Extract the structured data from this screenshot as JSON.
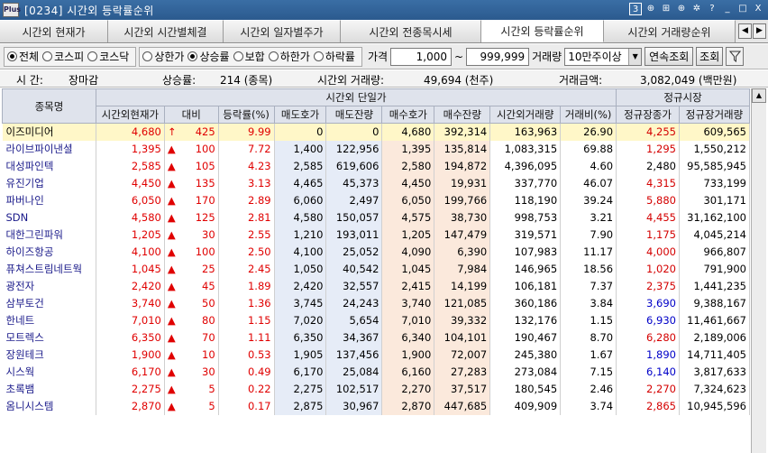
{
  "window": {
    "app_icon": "Plus",
    "title": "[0234] 시간외 등락률순위",
    "controls": [
      "3",
      "⊕",
      "⊞",
      "⊕",
      "✲",
      "?",
      "_",
      "□",
      "X"
    ]
  },
  "tabs": [
    {
      "label": "시간외 현재가",
      "active": false
    },
    {
      "label": "시간외 시간별체결",
      "active": false
    },
    {
      "label": "시간외 일자별주가",
      "active": false
    },
    {
      "label": "시간외 전종목시세",
      "active": false
    },
    {
      "label": "시간외 등락률순위",
      "active": true
    },
    {
      "label": "시간외 거래량순위",
      "active": false
    }
  ],
  "tab_nav": {
    "prev": "◀",
    "next": "▶"
  },
  "filters": {
    "market": [
      {
        "label": "전체",
        "checked": true
      },
      {
        "label": "코스피",
        "checked": false
      },
      {
        "label": "코스닥",
        "checked": false
      }
    ],
    "direction": [
      {
        "label": "상한가",
        "checked": false
      },
      {
        "label": "상승률",
        "checked": true
      },
      {
        "label": "보합",
        "checked": false
      },
      {
        "label": "하한가",
        "checked": false
      },
      {
        "label": "하락률",
        "checked": false
      }
    ],
    "price_label": "가격",
    "price_from": "1,000",
    "price_sep": "~",
    "price_to": "999,999",
    "volume_label": "거래량",
    "volume_select": "10만주이상",
    "continuous_button": "연속조회",
    "search_button": "조회",
    "filter_icon": "funnel-icon"
  },
  "summary": {
    "time_label": "시    간:",
    "time_value": "장마감",
    "rise_label": "상승률:",
    "rise_value": "214 (종목)",
    "volume_label": "시간외 거래량:",
    "volume_value": "49,694 (천주)",
    "amount_label": "거래금액:",
    "amount_value": "3,082,049 (백만원)"
  },
  "table": {
    "group_headers": {
      "name": "종목명",
      "afterhours": "시간외 단일가",
      "regular": "정규시장"
    },
    "columns": [
      "시간외현재가",
      "대비",
      "등락률(%)",
      "매도호가",
      "매도잔량",
      "매수호가",
      "매수잔량",
      "시간외거래량",
      "거래비(%)",
      "정규장종가",
      "정규장거래량"
    ],
    "rows": [
      {
        "name": "이즈미디어",
        "price": "4,680",
        "arrow": "↑",
        "diff": "425",
        "rate": "9.99",
        "ask": "0",
        "ask_qty": "0",
        "bid": "4,680",
        "bid_qty": "392,314",
        "vol": "163,963",
        "ratio": "26.90",
        "close": "4,255",
        "close_color": "red",
        "reg_vol": "609,565"
      },
      {
        "name": "라이브파이낸셜",
        "price": "1,395",
        "arrow": "▲",
        "diff": "100",
        "rate": "7.72",
        "ask": "1,400",
        "ask_qty": "122,956",
        "bid": "1,395",
        "bid_qty": "135,814",
        "vol": "1,083,315",
        "ratio": "69.88",
        "close": "1,295",
        "close_color": "red",
        "reg_vol": "1,550,212"
      },
      {
        "name": "대성파인텍",
        "price": "2,585",
        "arrow": "▲",
        "diff": "105",
        "rate": "4.23",
        "ask": "2,585",
        "ask_qty": "619,606",
        "bid": "2,580",
        "bid_qty": "194,872",
        "vol": "4,396,095",
        "ratio": "4.60",
        "close": "2,480",
        "close_color": "black",
        "reg_vol": "95,585,945"
      },
      {
        "name": "유진기업",
        "price": "4,450",
        "arrow": "▲",
        "diff": "135",
        "rate": "3.13",
        "ask": "4,465",
        "ask_qty": "45,373",
        "bid": "4,450",
        "bid_qty": "19,931",
        "vol": "337,770",
        "ratio": "46.07",
        "close": "4,315",
        "close_color": "red",
        "reg_vol": "733,199"
      },
      {
        "name": "파버나인",
        "price": "6,050",
        "arrow": "▲",
        "diff": "170",
        "rate": "2.89",
        "ask": "6,060",
        "ask_qty": "2,497",
        "bid": "6,050",
        "bid_qty": "199,766",
        "vol": "118,190",
        "ratio": "39.24",
        "close": "5,880",
        "close_color": "red",
        "reg_vol": "301,171"
      },
      {
        "name": "SDN",
        "price": "4,580",
        "arrow": "▲",
        "diff": "125",
        "rate": "2.81",
        "ask": "4,580",
        "ask_qty": "150,057",
        "bid": "4,575",
        "bid_qty": "38,730",
        "vol": "998,753",
        "ratio": "3.21",
        "close": "4,455",
        "close_color": "red",
        "reg_vol": "31,162,100"
      },
      {
        "name": "대한그린파워",
        "price": "1,205",
        "arrow": "▲",
        "diff": "30",
        "rate": "2.55",
        "ask": "1,210",
        "ask_qty": "193,011",
        "bid": "1,205",
        "bid_qty": "147,479",
        "vol": "319,571",
        "ratio": "7.90",
        "close": "1,175",
        "close_color": "red",
        "reg_vol": "4,045,214"
      },
      {
        "name": "하이즈항공",
        "price": "4,100",
        "arrow": "▲",
        "diff": "100",
        "rate": "2.50",
        "ask": "4,100",
        "ask_qty": "25,052",
        "bid": "4,090",
        "bid_qty": "6,390",
        "vol": "107,983",
        "ratio": "11.17",
        "close": "4,000",
        "close_color": "red",
        "reg_vol": "966,807"
      },
      {
        "name": "퓨쳐스트림네트웍",
        "price": "1,045",
        "arrow": "▲",
        "diff": "25",
        "rate": "2.45",
        "ask": "1,050",
        "ask_qty": "40,542",
        "bid": "1,045",
        "bid_qty": "7,984",
        "vol": "146,965",
        "ratio": "18.56",
        "close": "1,020",
        "close_color": "red",
        "reg_vol": "791,900"
      },
      {
        "name": "광전자",
        "price": "2,420",
        "arrow": "▲",
        "diff": "45",
        "rate": "1.89",
        "ask": "2,420",
        "ask_qty": "32,557",
        "bid": "2,415",
        "bid_qty": "14,199",
        "vol": "106,181",
        "ratio": "7.37",
        "close": "2,375",
        "close_color": "red",
        "reg_vol": "1,441,235"
      },
      {
        "name": "삼부토건",
        "price": "3,740",
        "arrow": "▲",
        "diff": "50",
        "rate": "1.36",
        "ask": "3,745",
        "ask_qty": "24,243",
        "bid": "3,740",
        "bid_qty": "121,085",
        "vol": "360,186",
        "ratio": "3.84",
        "close": "3,690",
        "close_color": "blue",
        "reg_vol": "9,388,167"
      },
      {
        "name": "한네트",
        "price": "7,010",
        "arrow": "▲",
        "diff": "80",
        "rate": "1.15",
        "ask": "7,020",
        "ask_qty": "5,654",
        "bid": "7,010",
        "bid_qty": "39,332",
        "vol": "132,176",
        "ratio": "1.15",
        "close": "6,930",
        "close_color": "blue",
        "reg_vol": "11,461,667"
      },
      {
        "name": "모트렉스",
        "price": "6,350",
        "arrow": "▲",
        "diff": "70",
        "rate": "1.11",
        "ask": "6,350",
        "ask_qty": "34,367",
        "bid": "6,340",
        "bid_qty": "104,101",
        "vol": "190,467",
        "ratio": "8.70",
        "close": "6,280",
        "close_color": "red",
        "reg_vol": "2,189,006"
      },
      {
        "name": "장원테크",
        "price": "1,900",
        "arrow": "▲",
        "diff": "10",
        "rate": "0.53",
        "ask": "1,905",
        "ask_qty": "137,456",
        "bid": "1,900",
        "bid_qty": "72,007",
        "vol": "245,380",
        "ratio": "1.67",
        "close": "1,890",
        "close_color": "blue",
        "reg_vol": "14,711,405"
      },
      {
        "name": "시스웍",
        "price": "6,170",
        "arrow": "▲",
        "diff": "30",
        "rate": "0.49",
        "ask": "6,170",
        "ask_qty": "25,084",
        "bid": "6,160",
        "bid_qty": "27,283",
        "vol": "273,084",
        "ratio": "7.15",
        "close": "6,140",
        "close_color": "blue",
        "reg_vol": "3,817,633"
      },
      {
        "name": "초록뱀",
        "price": "2,275",
        "arrow": "▲",
        "diff": "5",
        "rate": "0.22",
        "ask": "2,275",
        "ask_qty": "102,517",
        "bid": "2,270",
        "bid_qty": "37,517",
        "vol": "180,545",
        "ratio": "2.46",
        "close": "2,270",
        "close_color": "red",
        "reg_vol": "7,324,623"
      },
      {
        "name": "옴니시스템",
        "price": "2,870",
        "arrow": "▲",
        "diff": "5",
        "rate": "0.17",
        "ask": "2,875",
        "ask_qty": "30,967",
        "bid": "2,870",
        "bid_qty": "447,685",
        "vol": "409,909",
        "ratio": "3.74",
        "close": "2,865",
        "close_color": "red",
        "reg_vol": "10,945,596"
      }
    ]
  },
  "colors": {
    "up": "#e00000",
    "down_close": "#0000c8",
    "sell_col_bg": "#e6ecf7",
    "buy_col_bg": "#fbe9dc",
    "selected_row_bg": "#fff7c8"
  }
}
